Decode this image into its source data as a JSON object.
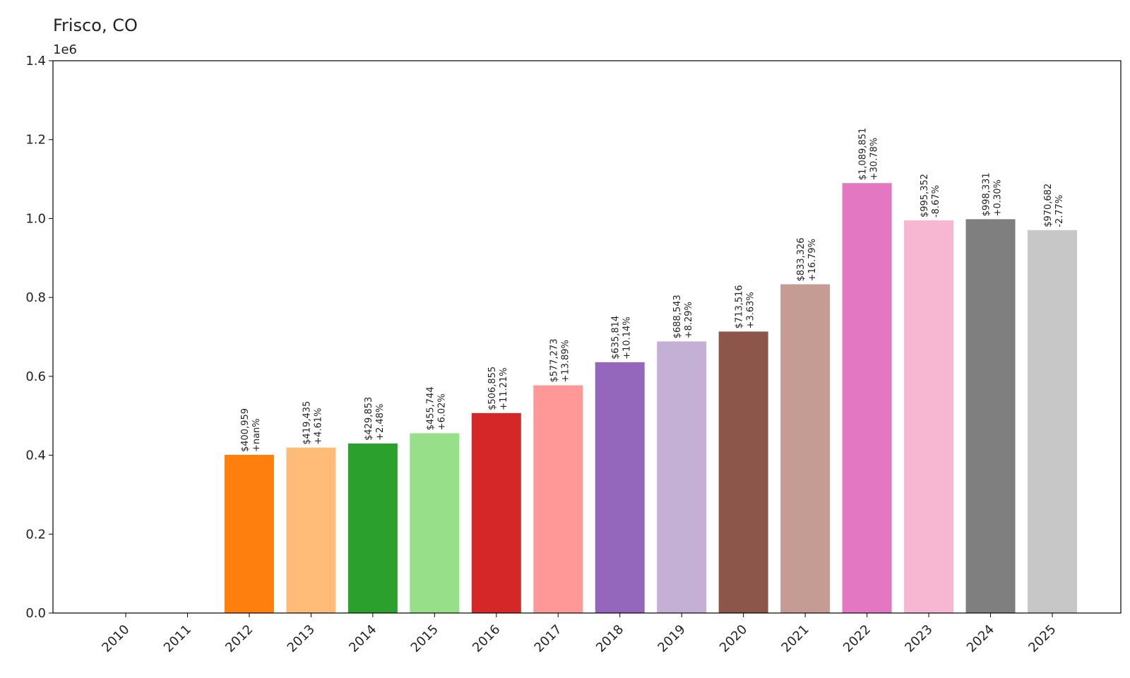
{
  "chart_data": {
    "type": "bar",
    "title": "Frisco, CO",
    "offset_label": "1e6",
    "xlabel": "",
    "ylabel": "",
    "ylim": [
      0,
      1.4
    ],
    "y_scale_factor": 1000000,
    "grid": false,
    "legend": "none",
    "categories": [
      "2010",
      "2011",
      "2012",
      "2013",
      "2014",
      "2015",
      "2016",
      "2017",
      "2018",
      "2019",
      "2020",
      "2021",
      "2022",
      "2023",
      "2024",
      "2025"
    ],
    "values": [
      0,
      0,
      400959,
      419435,
      429853,
      455744,
      506855,
      577273,
      635814,
      688543,
      713516,
      833326,
      1089851,
      995352,
      998331,
      970682
    ],
    "value_labels": [
      "",
      "",
      "$400,959",
      "$419,435",
      "$429,853",
      "$455,744",
      "$506,855",
      "$577,273",
      "$635,814",
      "$688,543",
      "$713,516",
      "$833,326",
      "$1,089,851",
      "$995,352",
      "$998,331",
      "$970,682"
    ],
    "change_labels": [
      "",
      "",
      "+nan%",
      "+4.61%",
      "+2.48%",
      "+6.02%",
      "+11.21%",
      "+13.89%",
      "+10.14%",
      "+8.29%",
      "+3.63%",
      "+16.79%",
      "+30.78%",
      "-8.67%",
      "+0.30%",
      "-2.77%"
    ],
    "yticks": [
      "0.0",
      "0.2",
      "0.4",
      "0.6",
      "0.8",
      "1.0",
      "1.2",
      "1.4"
    ],
    "colors": [
      "#1f77b4",
      "#aec7e8",
      "#ff7f0e",
      "#ffbb78",
      "#2ca02c",
      "#98df8a",
      "#d62728",
      "#ff9896",
      "#9467bd",
      "#c5b0d5",
      "#8c564b",
      "#c49c94",
      "#e377c2",
      "#f7b6d2",
      "#7f7f7f",
      "#c7c7c7"
    ]
  }
}
